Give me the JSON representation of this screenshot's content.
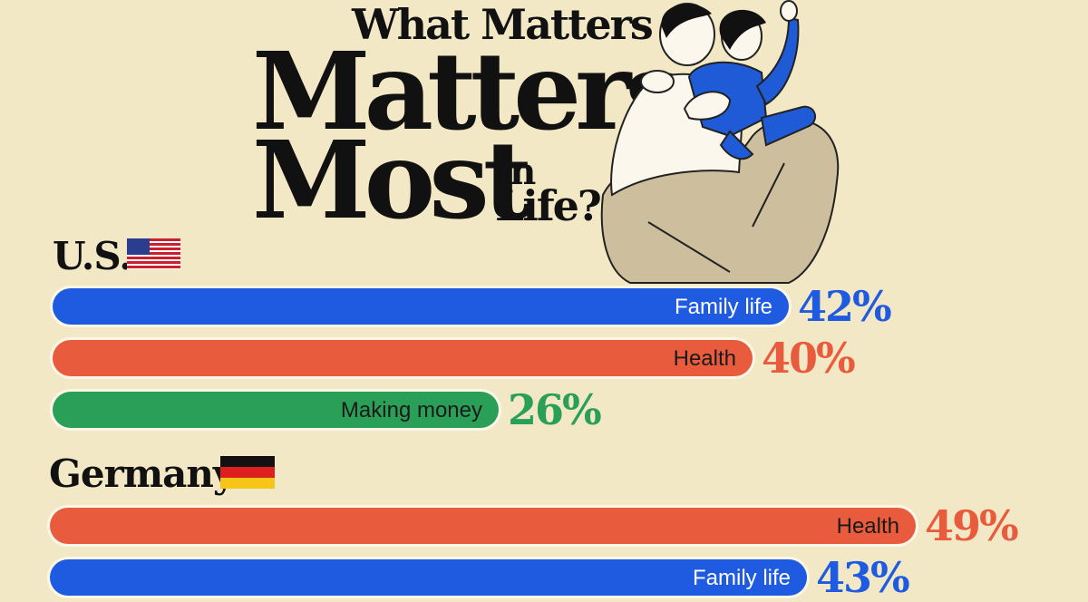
{
  "header": {
    "title_small": "What Matters",
    "title_line1": "Matters",
    "title_line2": "Most",
    "title_in": "in",
    "title_life": "Life?"
  },
  "illustration": {
    "name": "parent-holding-child",
    "colors": {
      "child_outfit": "#1f5bd6",
      "parent_pants": "#cdbf9e"
    }
  },
  "colors": {
    "family": "#1e5be0",
    "health": "#e85b3d",
    "money": "#2a9f57",
    "pct_family": "#1e5be0",
    "pct_health": "#e85b3d",
    "pct_money": "#2a9f57"
  },
  "chart_data": {
    "type": "bar",
    "orientation": "horizontal",
    "unit": "%",
    "groups": [
      {
        "country": "U.S.",
        "flag": "us-flag",
        "bars": [
          {
            "label": "Family life",
            "value": 42,
            "category": "family"
          },
          {
            "label": "Health",
            "value": 40,
            "category": "health"
          },
          {
            "label": "Making money",
            "value": 26,
            "category": "money"
          }
        ]
      },
      {
        "country": "Germany",
        "flag": "germany-flag",
        "bars": [
          {
            "label": "Health",
            "value": 49,
            "category": "health"
          },
          {
            "label": "Family life",
            "value": 43,
            "category": "family"
          }
        ]
      }
    ]
  }
}
